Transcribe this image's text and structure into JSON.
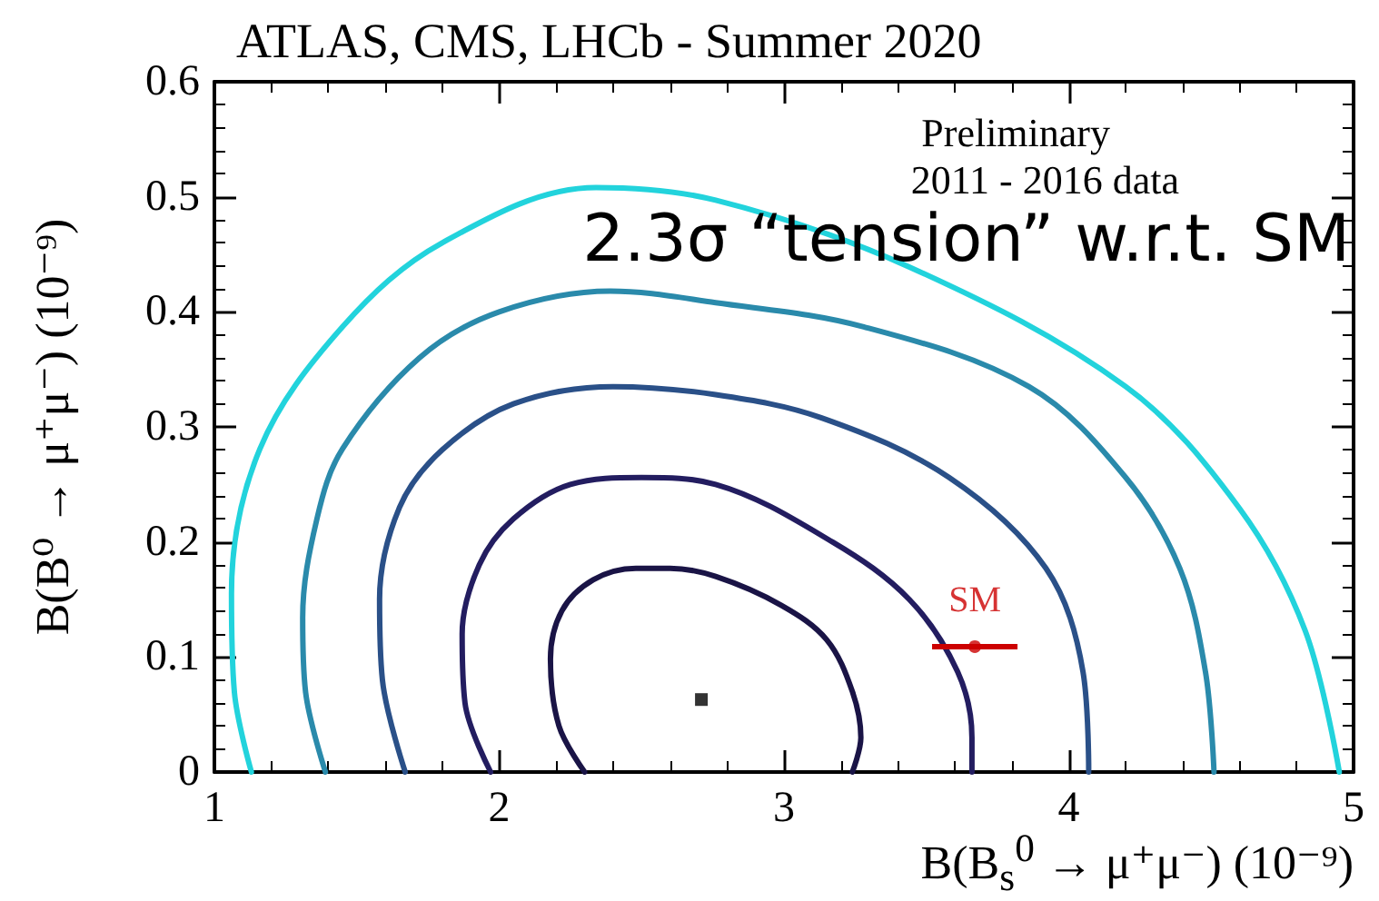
{
  "chart_data": {
    "type": "line",
    "title": "ATLAS, CMS, LHCb - Summer 2020",
    "xlabel": "B(B$_{s}$$^{0}$ → μ⁺μ⁻) (10⁻⁹)",
    "ylabel": "B(B⁰ → μ⁺μ⁻) (10⁻⁹)",
    "annotations": [
      "Preliminary",
      "2011 - 2016 data",
      "2.3σ “tension” w.r.t. SM"
    ],
    "xlim": [
      1,
      5
    ],
    "xticks": [
      1,
      2,
      3,
      4,
      5
    ],
    "ylim": [
      0,
      0.6
    ],
    "yticks": [
      0,
      0.1,
      0.2,
      0.3,
      0.4,
      0.5,
      0.6
    ],
    "grid": false,
    "legend": false,
    "line_style": "solid",
    "series": [
      {
        "type": "line",
        "color": "#1a1446",
        "x": [
          2.3,
          2.21,
          2.18,
          2.22,
          2.33,
          2.48,
          2.6,
          2.76,
          2.99,
          3.15,
          3.24,
          3.27,
          3.24
        ],
        "values": [
          0,
          0.04,
          0.098,
          0.14,
          0.167,
          0.177,
          0.177,
          0.17,
          0.145,
          0.115,
          0.07,
          0.03,
          0
        ]
      },
      {
        "type": "line",
        "color": "#231d60",
        "x": [
          1.97,
          1.88,
          1.87,
          1.93,
          2.05,
          2.25,
          2.5,
          2.76,
          3.17,
          3.44,
          3.61,
          3.66,
          3.66
        ],
        "values": [
          0,
          0.06,
          0.12,
          0.18,
          0.22,
          0.25,
          0.256,
          0.25,
          0.2,
          0.15,
          0.087,
          0.03,
          0
        ]
      },
      {
        "type": "line",
        "color": "#2a5088",
        "x": [
          1.67,
          1.59,
          1.58,
          1.65,
          1.8,
          2.05,
          2.4,
          2.76,
          3.13,
          3.58,
          3.92,
          4.05,
          4.07
        ],
        "values": [
          0,
          0.08,
          0.15,
          0.23,
          0.28,
          0.32,
          0.335,
          0.328,
          0.308,
          0.256,
          0.177,
          0.087,
          0
        ]
      },
      {
        "type": "line",
        "color": "#2a8aab",
        "x": [
          1.39,
          1.32,
          1.31,
          1.36,
          1.45,
          1.72,
          2.0,
          2.39,
          2.76,
          3.28,
          3.86,
          4.2,
          4.39,
          4.48,
          4.51
        ],
        "values": [
          0,
          0.07,
          0.134,
          0.22,
          0.281,
          0.36,
          0.4,
          0.418,
          0.408,
          0.387,
          0.335,
          0.256,
          0.177,
          0.087,
          0
        ]
      },
      {
        "type": "line",
        "color": "#22d3dc",
        "x": [
          1.13,
          1.07,
          1.06,
          1.16,
          1.45,
          1.8,
          2.34,
          2.76,
          3.44,
          4.2,
          4.6,
          4.83,
          4.95
        ],
        "values": [
          0,
          0.07,
          0.155,
          0.281,
          0.387,
          0.46,
          0.508,
          0.497,
          0.439,
          0.335,
          0.229,
          0.123,
          0
        ]
      },
      {
        "type": "scatter",
        "color": "#000000",
        "marker": "square",
        "x": [
          2.71
        ],
        "values": [
          0.063
        ]
      },
      {
        "type": "scatter",
        "name": "SM",
        "color": "#cc0000",
        "marker": "circle",
        "x": [
          3.67
        ],
        "values": [
          0.109
        ],
        "xerrors": [
          0.15
        ]
      }
    ]
  }
}
